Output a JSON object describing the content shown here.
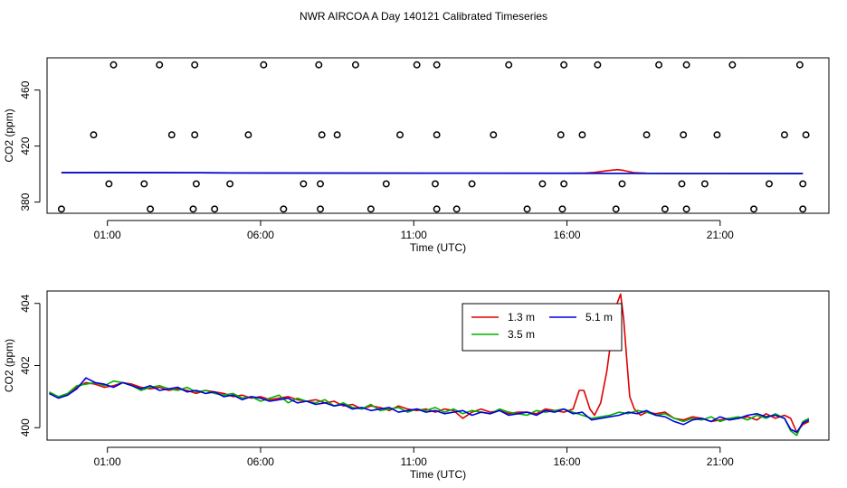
{
  "title": "NWR AIRCOA A  Day 140121  Calibrated Timeseries",
  "colors": {
    "red": "#e00000",
    "green": "#00b000",
    "blue": "#0000e0",
    "axis": "#000000"
  },
  "chart_data": [
    {
      "type": "scatter",
      "title": "",
      "xlabel": "Time (UTC)",
      "ylabel": "CO2 (ppm)",
      "xticks": [
        1,
        6,
        11,
        16,
        21
      ],
      "xtick_labels": [
        "01:00",
        "06:00",
        "11:00",
        "16:00",
        "21:00"
      ],
      "xlim": [
        -0.97,
        24.55
      ],
      "yticks": [
        380,
        420,
        460
      ],
      "ytick_labels": [
        "380",
        "420",
        "460"
      ],
      "ylim": [
        372,
        483
      ],
      "reference_points": {
        "name": "calibration standards",
        "x": [
          -0.5,
          1.05,
          0.55,
          1.2,
          2.4,
          2.2,
          3.1,
          2.7,
          3.8,
          3.9,
          3.85,
          3.85,
          4.5,
          5.0,
          5.6,
          6.1,
          6.75,
          7.4,
          8.0,
          7.9,
          7.95,
          7.95,
          8.5,
          9.1,
          9.6,
          10.1,
          10.55,
          11.1,
          11.75,
          11.7,
          11.75,
          11.75,
          12.4,
          12.9,
          13.6,
          14.1,
          14.7,
          15.2,
          15.8,
          15.9,
          15.85,
          15.9,
          16.5,
          17.0,
          17.6,
          17.8,
          18.6,
          19.0,
          19.2,
          19.75,
          19.8,
          19.9,
          19.9,
          20.5,
          20.9,
          21.4,
          22.1,
          22.6,
          23.1,
          23.6,
          23.7,
          23.7,
          23.8
        ]
      },
      "series": [
        {
          "name": "1.3 m",
          "color": "#e00000",
          "x": [
            -0.5,
            1,
            4,
            6.5,
            11.5,
            16,
            16.6,
            16.9,
            17.3,
            17.65,
            17.85,
            18.2,
            18.6,
            19.2,
            20,
            23.7
          ],
          "values": [
            401.0,
            401.0,
            400.9,
            400.8,
            400.6,
            400.6,
            400.8,
            401.2,
            402.4,
            403.2,
            402.6,
            401.0,
            400.6,
            400.5,
            400.4,
            400.4
          ]
        },
        {
          "name": "3.5 m",
          "color": "#00b000",
          "x": [
            -0.5,
            1,
            4,
            6.5,
            11.5,
            16,
            20,
            23.7
          ],
          "values": [
            400.9,
            401.0,
            400.9,
            400.8,
            400.6,
            400.6,
            400.4,
            400.3
          ]
        },
        {
          "name": "5.1 m",
          "color": "#0000e0",
          "x": [
            -0.5,
            1,
            4,
            6.5,
            11.5,
            16,
            20,
            23.7
          ],
          "values": [
            401.0,
            401.1,
            400.9,
            400.8,
            400.6,
            400.5,
            400.4,
            400.3
          ]
        }
      ]
    },
    {
      "type": "line",
      "title": "",
      "xlabel": "Time (UTC)",
      "ylabel": "CO2 (ppm)",
      "xticks": [
        1,
        6,
        11,
        16,
        21
      ],
      "xtick_labels": [
        "01:00",
        "06:00",
        "11:00",
        "16:00",
        "21:00"
      ],
      "xlim": [
        -0.97,
        24.55
      ],
      "yticks": [
        400,
        402,
        404
      ],
      "ytick_labels": [
        "400",
        "402",
        "404"
      ],
      "ylim": [
        399.6,
        404.4
      ],
      "legend": {
        "position": "top-right",
        "labels": [
          "1.3 m",
          "3.5 m",
          "5.1 m"
        ]
      },
      "series": [
        {
          "name": "1.3 m",
          "color": "#e00000",
          "x": [
            -0.9,
            -0.6,
            -0.3,
            0.0,
            0.3,
            0.6,
            0.9,
            1.2,
            1.5,
            1.8,
            2.1,
            2.4,
            2.7,
            3.0,
            3.3,
            3.6,
            3.9,
            4.2,
            4.5,
            4.8,
            5.1,
            5.4,
            5.7,
            6.0,
            6.3,
            6.6,
            6.9,
            7.2,
            7.5,
            7.8,
            8.1,
            8.4,
            8.7,
            9.0,
            9.3,
            9.6,
            9.9,
            10.2,
            10.5,
            10.8,
            11.1,
            11.4,
            11.7,
            12.0,
            12.3,
            12.6,
            12.9,
            13.2,
            13.5,
            13.8,
            14.1,
            14.4,
            14.7,
            15.0,
            15.3,
            15.6,
            15.9,
            16.2,
            16.4,
            16.55,
            16.75,
            16.9,
            17.1,
            17.3,
            17.45,
            17.6,
            17.75,
            17.85,
            17.95,
            18.05,
            18.2,
            18.4,
            18.6,
            18.9,
            19.2,
            19.5,
            19.8,
            20.1,
            20.4,
            20.7,
            21.0,
            21.3,
            21.6,
            21.9,
            22.2,
            22.5,
            22.8,
            23.1,
            23.3,
            23.5,
            23.7,
            23.9
          ],
          "values": [
            401.1,
            401.0,
            401.05,
            401.3,
            401.45,
            401.4,
            401.3,
            401.35,
            401.45,
            401.4,
            401.3,
            401.25,
            401.3,
            401.2,
            401.25,
            401.2,
            401.1,
            401.2,
            401.15,
            401.1,
            401.0,
            401.05,
            400.95,
            401.0,
            400.9,
            400.95,
            401.0,
            400.9,
            400.85,
            400.9,
            400.8,
            400.85,
            400.7,
            400.75,
            400.6,
            400.7,
            400.65,
            400.55,
            400.7,
            400.6,
            400.55,
            400.6,
            400.5,
            400.6,
            400.55,
            400.3,
            400.5,
            400.6,
            400.5,
            400.55,
            400.45,
            400.5,
            400.5,
            400.45,
            400.6,
            400.55,
            400.5,
            400.6,
            401.2,
            401.2,
            400.6,
            400.4,
            400.8,
            401.8,
            402.9,
            403.9,
            404.3,
            403.5,
            402.2,
            401.0,
            400.6,
            400.4,
            400.5,
            400.45,
            400.5,
            400.3,
            400.25,
            400.35,
            400.3,
            400.2,
            400.25,
            400.3,
            400.3,
            400.35,
            400.25,
            400.45,
            400.3,
            400.4,
            400.3,
            399.85,
            400.1,
            400.2
          ]
        },
        {
          "name": "3.5 m",
          "color": "#00b000",
          "x": [
            -0.9,
            -0.6,
            -0.3,
            0.0,
            0.3,
            0.6,
            0.9,
            1.2,
            1.5,
            1.8,
            2.1,
            2.4,
            2.7,
            3.0,
            3.3,
            3.6,
            3.9,
            4.2,
            4.5,
            4.8,
            5.1,
            5.4,
            5.7,
            6.0,
            6.3,
            6.6,
            6.9,
            7.2,
            7.5,
            7.8,
            8.1,
            8.4,
            8.7,
            9.0,
            9.3,
            9.6,
            9.9,
            10.2,
            10.5,
            10.8,
            11.1,
            11.4,
            11.7,
            12.0,
            12.3,
            12.6,
            12.9,
            13.2,
            13.5,
            13.8,
            14.1,
            14.4,
            14.7,
            15.0,
            15.3,
            15.6,
            15.9,
            16.2,
            16.5,
            16.8,
            17.1,
            17.4,
            17.7,
            18.0,
            18.3,
            18.6,
            18.9,
            19.2,
            19.5,
            19.8,
            20.1,
            20.4,
            20.7,
            21.0,
            21.3,
            21.6,
            21.9,
            22.2,
            22.5,
            22.8,
            23.1,
            23.3,
            23.5,
            23.7,
            23.9
          ],
          "values": [
            401.15,
            401.0,
            401.1,
            401.35,
            401.4,
            401.45,
            401.35,
            401.5,
            401.45,
            401.35,
            401.2,
            401.3,
            401.35,
            401.25,
            401.2,
            401.3,
            401.15,
            401.2,
            401.1,
            401.05,
            401.1,
            400.95,
            401.0,
            400.85,
            400.95,
            401.05,
            400.8,
            400.95,
            400.85,
            400.8,
            400.9,
            400.7,
            400.8,
            400.65,
            400.6,
            400.75,
            400.55,
            400.6,
            400.65,
            400.5,
            400.6,
            400.55,
            400.65,
            400.5,
            400.6,
            400.45,
            400.55,
            400.5,
            400.45,
            400.6,
            400.5,
            400.45,
            400.4,
            400.55,
            400.5,
            400.55,
            400.6,
            400.5,
            400.4,
            400.3,
            400.35,
            400.4,
            400.5,
            400.45,
            400.55,
            400.5,
            400.4,
            400.45,
            400.3,
            400.2,
            400.3,
            400.25,
            400.35,
            400.2,
            400.3,
            400.35,
            400.25,
            400.4,
            400.3,
            400.45,
            400.3,
            399.9,
            399.75,
            400.2,
            400.3
          ]
        },
        {
          "name": "5.1 m",
          "color": "#0000e0",
          "x": [
            -0.9,
            -0.6,
            -0.3,
            0.0,
            0.3,
            0.6,
            0.9,
            1.2,
            1.5,
            1.8,
            2.1,
            2.4,
            2.7,
            3.0,
            3.3,
            3.6,
            3.9,
            4.2,
            4.5,
            4.8,
            5.1,
            5.4,
            5.7,
            6.0,
            6.3,
            6.6,
            6.9,
            7.2,
            7.5,
            7.8,
            8.1,
            8.4,
            8.7,
            9.0,
            9.3,
            9.6,
            9.9,
            10.2,
            10.5,
            10.8,
            11.1,
            11.4,
            11.7,
            12.0,
            12.3,
            12.6,
            12.9,
            13.2,
            13.5,
            13.8,
            14.1,
            14.4,
            14.7,
            15.0,
            15.3,
            15.6,
            15.9,
            16.2,
            16.5,
            16.8,
            17.1,
            17.4,
            17.7,
            18.0,
            18.3,
            18.6,
            18.9,
            19.2,
            19.5,
            19.8,
            20.1,
            20.4,
            20.7,
            21.0,
            21.3,
            21.6,
            21.9,
            22.2,
            22.5,
            22.8,
            23.1,
            23.3,
            23.5,
            23.7,
            23.9
          ],
          "values": [
            401.1,
            400.95,
            401.05,
            401.25,
            401.6,
            401.45,
            401.4,
            401.3,
            401.45,
            401.35,
            401.25,
            401.35,
            401.2,
            401.25,
            401.3,
            401.15,
            401.2,
            401.1,
            401.15,
            401.0,
            401.05,
            400.9,
            401.0,
            400.95,
            400.85,
            400.9,
            400.95,
            400.8,
            400.85,
            400.75,
            400.8,
            400.7,
            400.75,
            400.6,
            400.65,
            400.55,
            400.6,
            400.65,
            400.5,
            400.55,
            400.6,
            400.5,
            400.55,
            400.45,
            400.5,
            400.55,
            400.4,
            400.5,
            400.45,
            400.55,
            400.4,
            400.45,
            400.5,
            400.4,
            400.55,
            400.5,
            400.6,
            400.45,
            400.5,
            400.25,
            400.3,
            400.35,
            400.4,
            400.5,
            400.45,
            400.55,
            400.4,
            400.35,
            400.2,
            400.1,
            400.25,
            400.3,
            400.2,
            400.35,
            400.25,
            400.3,
            400.4,
            400.45,
            400.35,
            400.4,
            400.3,
            399.95,
            399.85,
            400.15,
            400.25
          ]
        }
      ]
    }
  ]
}
